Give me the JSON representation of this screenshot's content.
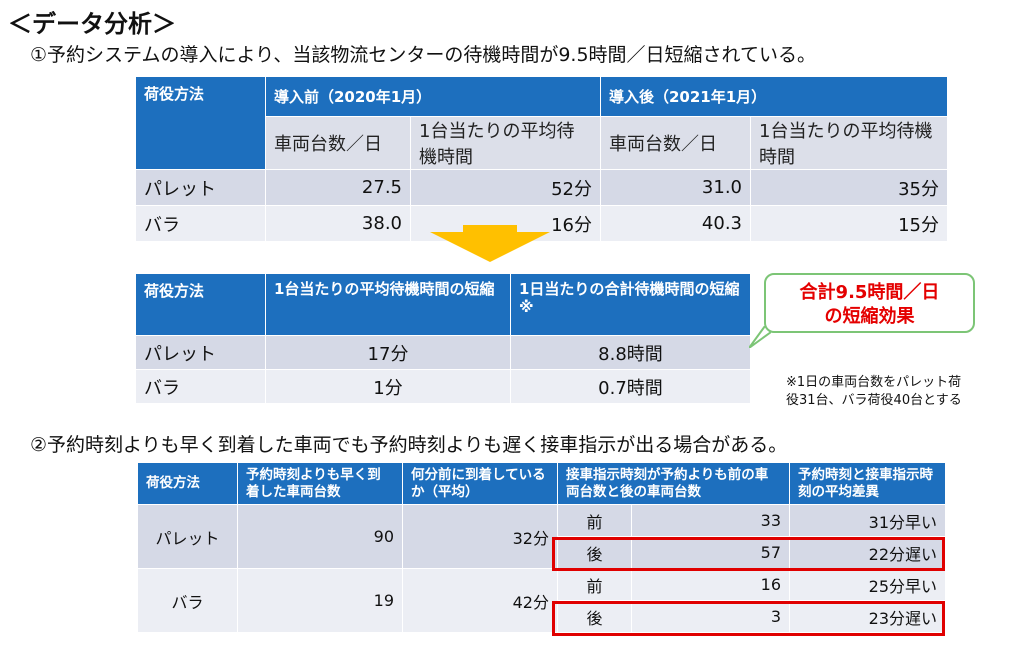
{
  "heading": "＜データ分析＞",
  "section1_title": "①予約システムの導入により、当該物流センターの待機時間が9.5時間／日短縮されている。",
  "table1": {
    "col0": "荷役方法",
    "before_label": "導入前（2020年1月）",
    "after_label": "導入後（2021年1月）",
    "sub": [
      "車両台数／日",
      "1台当たりの平均待機時間",
      "車両台数／日",
      "1台当たりの平均待機時間"
    ],
    "rows": [
      {
        "method": "パレット",
        "v": [
          "27.5",
          "52分",
          "31.0",
          "35分"
        ]
      },
      {
        "method": "バラ",
        "v": [
          "38.0",
          "16分",
          "40.3",
          "15分"
        ]
      }
    ]
  },
  "table2": {
    "col0": "荷役方法",
    "col1": "1台当たりの平均待機時間の短縮",
    "col2": "1日当たりの合計待機時間の短縮※",
    "rows": [
      {
        "method": "パレット",
        "v": [
          "17分",
          "8.8時間"
        ]
      },
      {
        "method": "バラ",
        "v": [
          "1分",
          "0.7時間"
        ]
      }
    ]
  },
  "callout": {
    "line1": "合計9.5時間／日",
    "line2": "の短縮効果",
    "border_color": "#7cc576",
    "text_color": "#e40000"
  },
  "note": {
    "line1": "※1日の車両台数をパレット荷",
    "line2": "役31台、バラ荷役40台とする"
  },
  "section2_title": "②予約時刻よりも早く到着した車両でも予約時刻よりも遅く接車指示が出る場合がある。",
  "table3": {
    "headers": [
      "荷役方法",
      "予約時刻よりも早く到着した車両台数",
      "何分前に到着しているか（平均）",
      "接車指示時刻が予約よりも前の車両台数と後の車両台数",
      "予約時刻と接車指示時刻の平均差異"
    ],
    "groups": [
      {
        "method": "パレット",
        "count": "90",
        "avg": "32分",
        "rows": [
          {
            "when": "前",
            "n": "33",
            "diff": "31分早い"
          },
          {
            "when": "後",
            "n": "57",
            "diff": "22分遅い"
          }
        ]
      },
      {
        "method": "バラ",
        "count": "19",
        "avg": "42分",
        "rows": [
          {
            "when": "前",
            "n": "16",
            "diff": "25分早い"
          },
          {
            "when": "後",
            "n": "3",
            "diff": "23分遅い"
          }
        ]
      }
    ]
  },
  "colors": {
    "header_blue": "#1d6fbe",
    "arrow_yellow": "#ffc000",
    "highlight_red": "#e00000"
  }
}
